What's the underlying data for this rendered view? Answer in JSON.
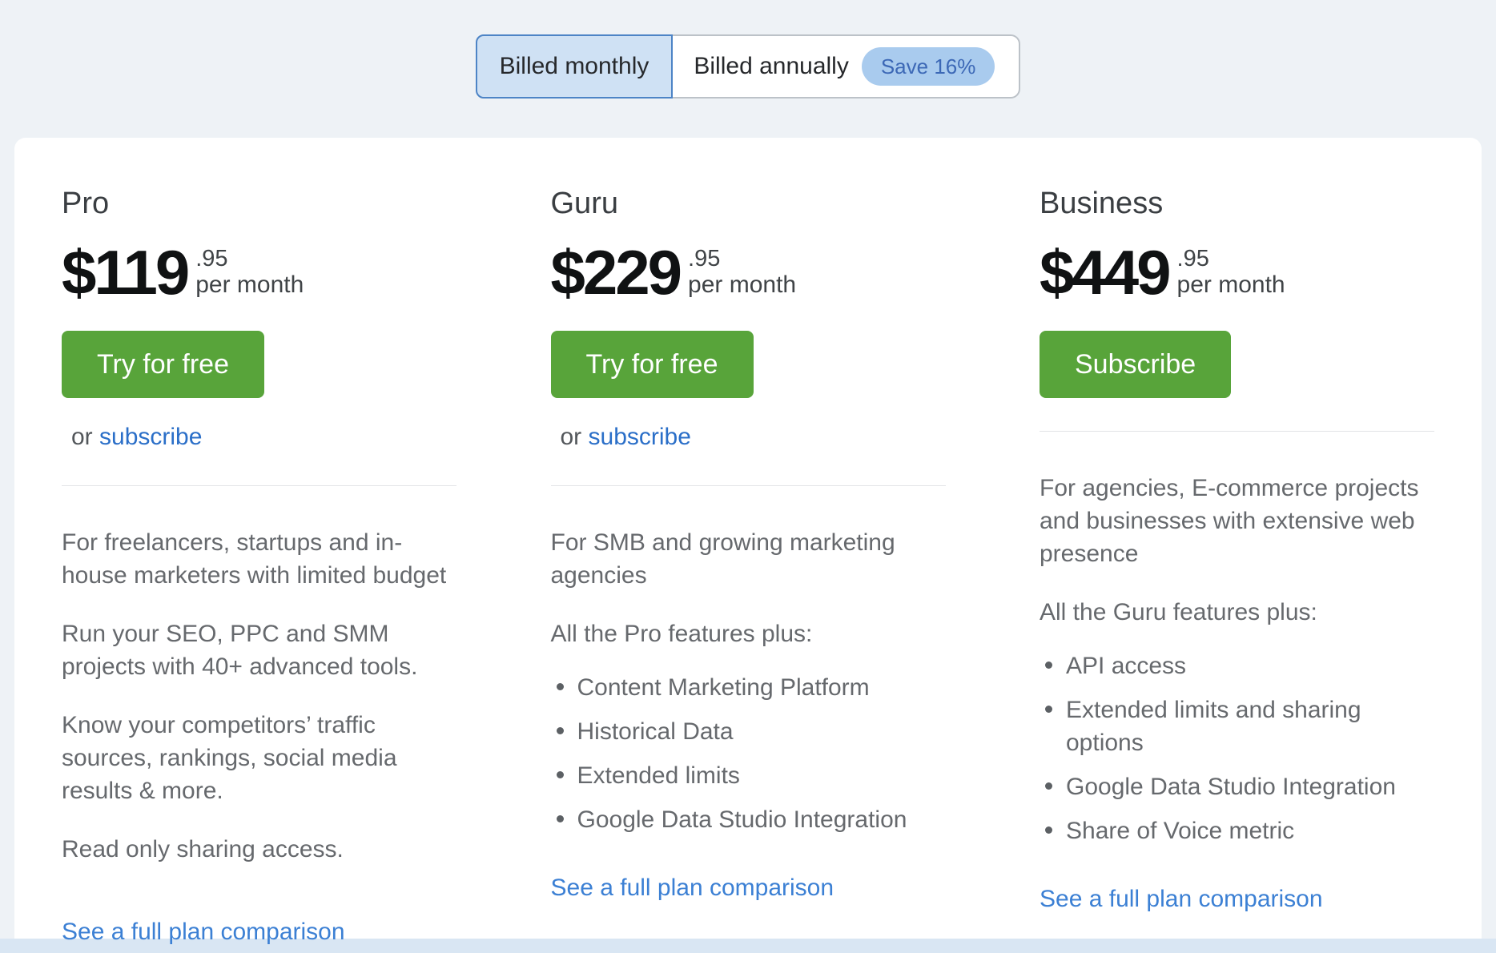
{
  "billing_toggle": {
    "monthly_label": "Billed monthly",
    "annual_label": "Billed annually",
    "save_badge": "Save 16%",
    "selected": "Billed monthly"
  },
  "colors": {
    "page_background": "#eef2f6",
    "card_background": "#ffffff",
    "accent_green": "#58a43a",
    "link_blue": "#3c80d4",
    "subscribe_link_blue": "#2b6fc8",
    "toggle_selected_bg": "#cfe1f4",
    "toggle_selected_border": "#4d84c6",
    "badge_bg": "#a9cbee",
    "badge_text": "#3c68b6",
    "bottom_strip": "#d9e6f3"
  },
  "plans": [
    {
      "name": "Pro",
      "price_dollars": "$119",
      "price_cents": ".95",
      "price_period": "per month",
      "cta_label": "Try for free",
      "or_label": "or",
      "subscribe_label": "subscribe",
      "description_paragraphs": [
        "For freelancers, startups and in-house marketers with limited budget",
        "Run your SEO, PPC and SMM projects with 40+ advanced tools.",
        "Know your competitors’ traffic sources, rankings, social media results & more.",
        "Read only sharing access."
      ],
      "comparison_link": "See a full plan comparison"
    },
    {
      "name": "Guru",
      "price_dollars": "$229",
      "price_cents": ".95",
      "price_period": "per month",
      "cta_label": "Try for free",
      "or_label": "or",
      "subscribe_label": "subscribe",
      "description": "For SMB and growing marketing agencies",
      "features_intro": "All the Pro features plus:",
      "features": [
        "Content Marketing Platform",
        "Historical Data",
        "Extended limits",
        "Google Data Studio Integration"
      ],
      "comparison_link": "See a full plan comparison"
    },
    {
      "name": "Business",
      "price_dollars": "$449",
      "price_cents": ".95",
      "price_period": "per month",
      "cta_label": "Subscribe",
      "description": "For agencies, E-commerce projects and businesses with extensive web presence",
      "features_intro": "All the Guru features plus:",
      "features": [
        "API access",
        "Extended limits and sharing options",
        "Google Data Studio Integration",
        "Share of Voice metric"
      ],
      "comparison_link": "See a full plan comparison"
    }
  ]
}
